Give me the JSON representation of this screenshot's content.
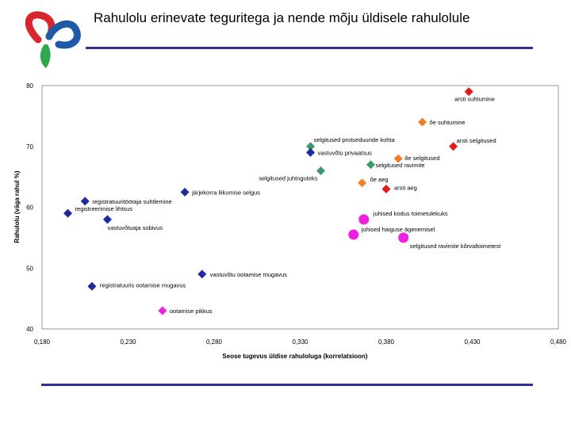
{
  "slide": {
    "title": "Rahulolu erinevate teguritega ja nende mõju üldisele rahulolule"
  },
  "colors": {
    "accent_rule": "#2e3192",
    "logo_red": "#d7262e",
    "logo_blue": "#1f5aa8",
    "logo_green": "#2ea84a"
  },
  "chart_data": {
    "type": "scatter",
    "title": "",
    "xlabel": "Seose tugevus üldise rahuloluga (korrelatsioon)",
    "ylabel": "Rahulolu (väga rahul %)",
    "xlim": [
      0.18,
      0.48
    ],
    "ylim": [
      40,
      80
    ],
    "xticks": [
      "0,180",
      "0,230",
      "0,280",
      "0,330",
      "0,380",
      "0,430",
      "0,480"
    ],
    "yticks": [
      "80",
      "70",
      "60",
      "50",
      "40"
    ],
    "grid": false,
    "legend": "none",
    "points": [
      {
        "label": "arsti suhtumine",
        "x": 0.428,
        "y": 79,
        "color": "#e31a1c",
        "shape": "diamond"
      },
      {
        "label": "õe suhtumine",
        "x": 0.401,
        "y": 74,
        "color": "#f07f2a",
        "shape": "diamond"
      },
      {
        "label": "arsti selgitused",
        "x": 0.419,
        "y": 70,
        "color": "#e31a1c",
        "shape": "diamond"
      },
      {
        "label": "selgitused protseduuride kohta",
        "x": 0.336,
        "y": 70,
        "color": "#3b9a6a",
        "shape": "diamond"
      },
      {
        "label": "vastuvõtu privaatsus",
        "x": 0.336,
        "y": 69,
        "color": "#1f2a9e",
        "shape": "diamond"
      },
      {
        "label": "õe selgitused",
        "x": 0.387,
        "y": 68,
        "color": "#f07f2a",
        "shape": "diamond"
      },
      {
        "label": "selgitused ravimite",
        "x": 0.371,
        "y": 67,
        "color": "#3b9a6a",
        "shape": "diamond"
      },
      {
        "label": "selgitused juhtnguteks",
        "x": 0.342,
        "y": 66,
        "color": "#3b9a6a",
        "shape": "diamond"
      },
      {
        "label": "õe aeg",
        "x": 0.366,
        "y": 64,
        "color": "#f07f2a",
        "shape": "diamond"
      },
      {
        "label": "arsti aeg",
        "x": 0.38,
        "y": 63,
        "color": "#e31a1c",
        "shape": "diamond"
      },
      {
        "label": "järjekorra liikumise selgus",
        "x": 0.263,
        "y": 62.5,
        "color": "#1f2a9e",
        "shape": "diamond"
      },
      {
        "label": "registratuuritöötaja suhtlemine",
        "x": 0.205,
        "y": 61,
        "color": "#1f2a9e",
        "shape": "diamond"
      },
      {
        "label": "registreerimise lihtsus",
        "x": 0.195,
        "y": 59,
        "color": "#1f2a9e",
        "shape": "diamond"
      },
      {
        "label": "vastuvõtuaja sobivus",
        "x": 0.218,
        "y": 58,
        "color": "#1f2a9e",
        "shape": "diamond"
      },
      {
        "label": "juhised kodus toimetulekuks",
        "x": 0.367,
        "y": 58,
        "color": "#ee1fe0",
        "shape": "circle"
      },
      {
        "label": "juhised haiguse ägenemisel",
        "x": 0.361,
        "y": 55.5,
        "color": "#ee1fe0",
        "shape": "circle"
      },
      {
        "label": "selgitused ravimite kõrvaltoimetest",
        "x": 0.39,
        "y": 55,
        "color": "#ee1fe0",
        "shape": "circle"
      },
      {
        "label": "vastuvõtu ootamise mugavus",
        "x": 0.273,
        "y": 49,
        "color": "#1f2a9e",
        "shape": "diamond"
      },
      {
        "label": "registratuuris ootamise mugavus",
        "x": 0.209,
        "y": 47,
        "color": "#1f2a9e",
        "shape": "diamond"
      },
      {
        "label": "ootamise pikkus",
        "x": 0.25,
        "y": 43,
        "color": "#ee1fe0",
        "shape": "diamond"
      }
    ]
  }
}
